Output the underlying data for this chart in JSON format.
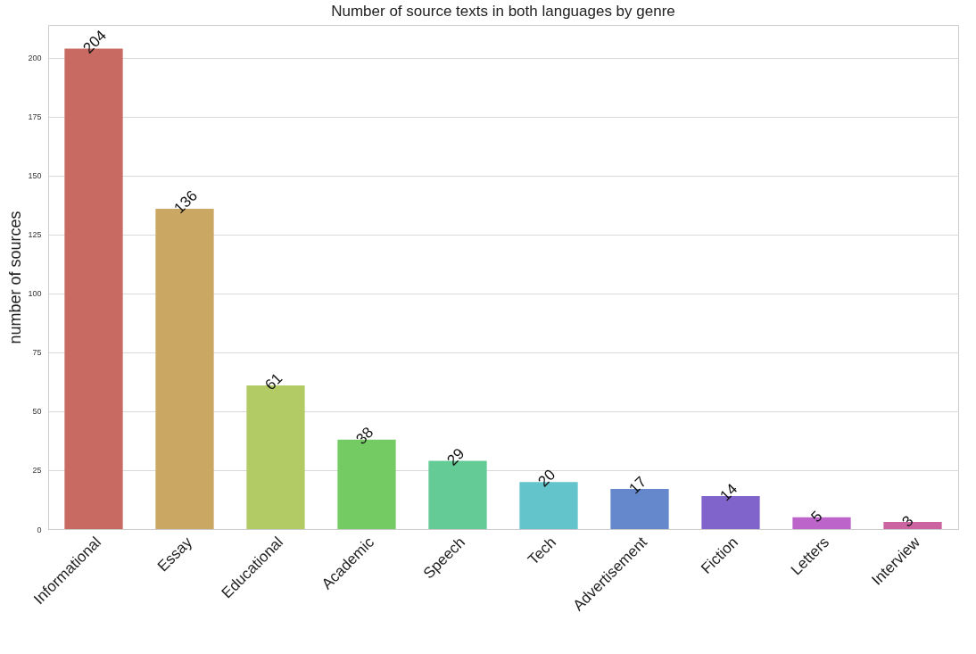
{
  "chart_data": {
    "type": "bar",
    "title": "Number of source texts in both languages by genre",
    "ylabel": "number of sources",
    "categories": [
      "Informational",
      "Essay",
      "Educational",
      "Academic",
      "Speech",
      "Tech",
      "Advertisement",
      "Fiction",
      "Letters",
      "Interview"
    ],
    "values": [
      204,
      136,
      61,
      38,
      29,
      20,
      17,
      14,
      5,
      3
    ],
    "colors": [
      "#c96a62",
      "#cba764",
      "#b2cb64",
      "#74cb64",
      "#64cb96",
      "#64c4cb",
      "#6488cb",
      "#8064cb",
      "#bd64cb",
      "#cb64a0"
    ],
    "ylim": [
      0,
      214
    ],
    "yticks": [
      0,
      25,
      50,
      75,
      100,
      125,
      150,
      175,
      200
    ],
    "grid": "y",
    "data_labels": true
  }
}
